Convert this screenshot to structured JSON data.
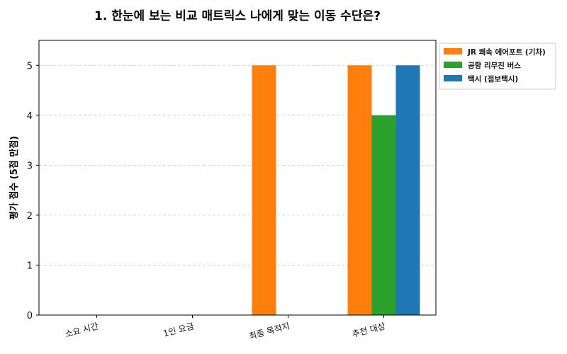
{
  "chart_data": {
    "type": "bar",
    "title": "1. 한눈에 보는 비교 매트릭스 나에게 맞는 이동 수단은?",
    "xlabel": "",
    "ylabel": "평가 점수 (5점 만점)",
    "categories": [
      "소요 시간",
      "1인 요금",
      "최종 목적지",
      "추천 대상"
    ],
    "ylim": [
      0,
      5.5
    ],
    "yticks": [
      0,
      1,
      2,
      3,
      4,
      5
    ],
    "grid": true,
    "legend_position": "outside-top-right",
    "series": [
      {
        "name": "JR 쾌속 에어포트 (기차)",
        "color": "#ff7f0e",
        "values": [
          0,
          0,
          5,
          5
        ]
      },
      {
        "name": "공항 리무진 버스",
        "color": "#2ca02c",
        "values": [
          0,
          0,
          0,
          4
        ]
      },
      {
        "name": "택시 (점보택시)",
        "color": "#1f77b4",
        "values": [
          0,
          0,
          0,
          5
        ]
      }
    ]
  }
}
